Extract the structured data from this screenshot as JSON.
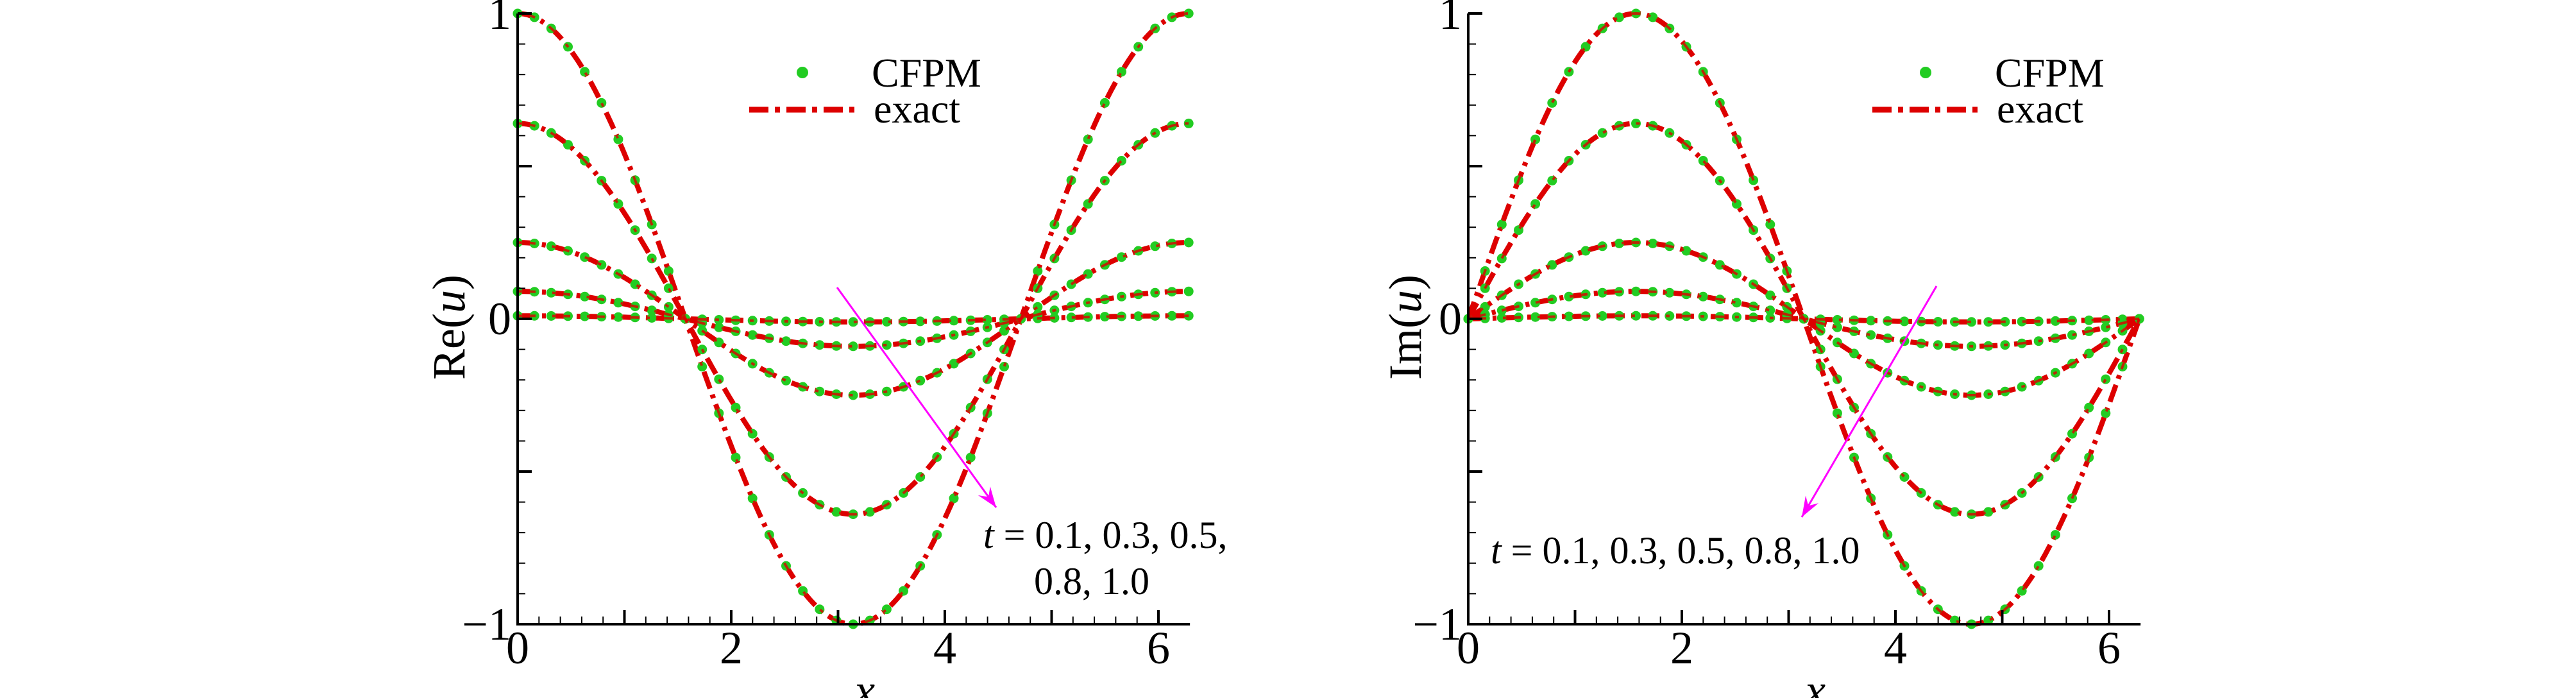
{
  "colors": {
    "cfpm": "#22cc22",
    "exact": "#dd0000",
    "arrow": "#ff00ff",
    "axis": "#000000"
  },
  "chart_data": [
    {
      "type": "line",
      "title": "",
      "xlabel": "x",
      "ylabel_prefix": "Re(",
      "ylabel_var": "u",
      "ylabel_suffix": ")",
      "function": "t^2 cos(x)",
      "xlim": [
        0,
        6.2832
      ],
      "ylim": [
        -1,
        1
      ],
      "xticks": [
        "0",
        "2",
        "4",
        "6"
      ],
      "yticks": [
        "1",
        "0",
        "−1"
      ],
      "ytick_values": [
        1,
        0,
        -1
      ],
      "xtick_values": [
        0,
        2,
        4,
        6
      ],
      "legend": {
        "placement": "top-center",
        "entries": [
          "CFPM",
          "exact"
        ]
      },
      "annotation": {
        "var": "t",
        "line1": " = 0.1, 0.3, 0.5,",
        "line2": "0.8, 1.0"
      },
      "t_values": [
        0.1,
        0.3,
        0.5,
        0.8,
        1.0
      ],
      "n_points": 41,
      "series": [
        {
          "name": "t=0.1",
          "amplitude": 0.01
        },
        {
          "name": "t=0.3",
          "amplitude": 0.09
        },
        {
          "name": "t=0.5",
          "amplitude": 0.25
        },
        {
          "name": "t=0.8",
          "amplitude": 0.64
        },
        {
          "name": "t=1.0",
          "amplitude": 1.0
        }
      ]
    },
    {
      "type": "line",
      "title": "",
      "xlabel": "x",
      "ylabel_prefix": "Im(",
      "ylabel_var": "u",
      "ylabel_suffix": ")",
      "function": "t^2 sin(x)",
      "xlim": [
        0,
        6.2832
      ],
      "ylim": [
        -1,
        1
      ],
      "xticks": [
        "0",
        "2",
        "4",
        "6"
      ],
      "yticks": [
        "1",
        "0",
        "−1"
      ],
      "ytick_values": [
        1,
        0,
        -1
      ],
      "xtick_values": [
        0,
        2,
        4,
        6
      ],
      "legend": {
        "placement": "top-right",
        "entries": [
          "CFPM",
          "exact"
        ]
      },
      "annotation": {
        "var": "t",
        "line1": " = 0.1, 0.3, 0.5, 0.8, 1.0",
        "line2": ""
      },
      "t_values": [
        0.1,
        0.3,
        0.5,
        0.8,
        1.0
      ],
      "n_points": 41,
      "series": [
        {
          "name": "t=0.1",
          "amplitude": 0.01
        },
        {
          "name": "t=0.3",
          "amplitude": 0.09
        },
        {
          "name": "t=0.5",
          "amplitude": 0.25
        },
        {
          "name": "t=0.8",
          "amplitude": 0.64
        },
        {
          "name": "t=1.0",
          "amplitude": 1.0
        }
      ]
    }
  ]
}
